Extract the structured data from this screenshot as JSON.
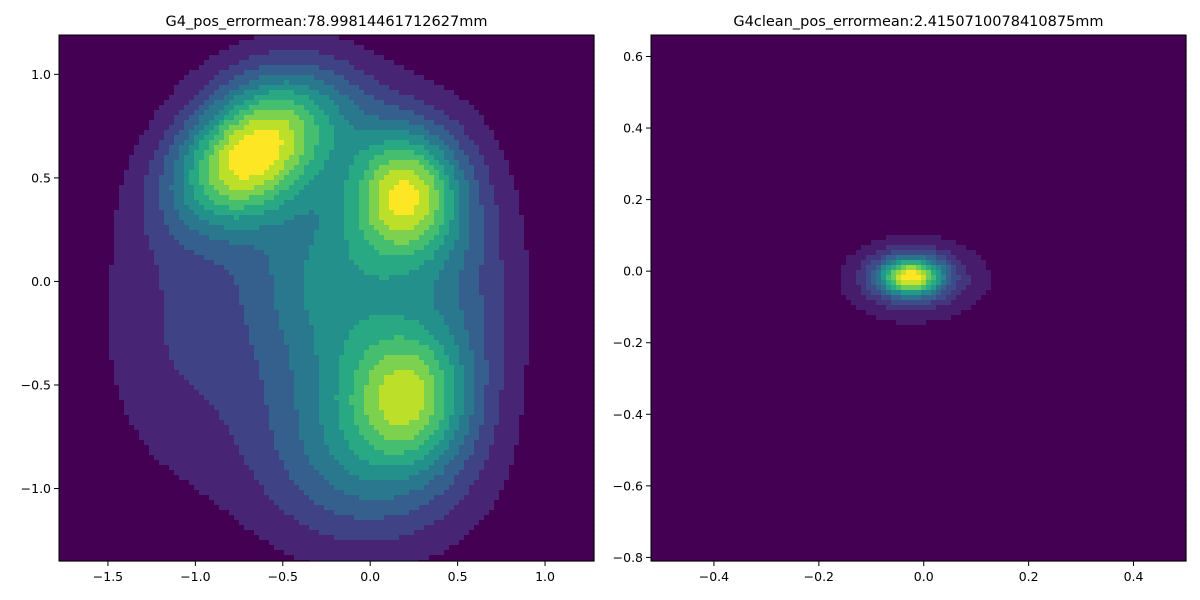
{
  "figure": {
    "background": "#ffffff"
  },
  "colormap": [
    "#440154",
    "#482878",
    "#3e4989",
    "#31688e",
    "#26828e",
    "#1f9e89",
    "#35b779",
    "#6ece58",
    "#b5de2b",
    "#fde725"
  ],
  "chart_data": [
    {
      "type": "heatmap",
      "subtype": "filled-contour-kde",
      "title": "G4_pos_errormean:78.99814461712627mm",
      "xlabel": "",
      "ylabel": "",
      "xlim": [
        -1.78,
        1.28
      ],
      "ylim": [
        -1.35,
        1.19
      ],
      "xticks": [
        -1.5,
        -1.0,
        -0.5,
        0.0,
        0.5,
        1.0
      ],
      "xtick_labels": [
        "−1.5",
        "−1.0",
        "−0.5",
        "0.0",
        "0.5",
        "1.0"
      ],
      "yticks": [
        -1.0,
        -0.5,
        0.0,
        0.5,
        1.0
      ],
      "ytick_labels": [
        "−1.0",
        "−0.5",
        "0.0",
        "0.5",
        "1.0"
      ],
      "grid": false,
      "levels": 11,
      "peaks": [
        {
          "x": -0.72,
          "y": 0.58,
          "sx": 0.3,
          "sy": 0.2,
          "weight": 1.0,
          "rotation_deg": -25
        },
        {
          "x": 0.2,
          "y": 0.43,
          "sx": 0.22,
          "sy": 0.22,
          "weight": 0.95
        },
        {
          "x": 0.22,
          "y": -0.56,
          "sx": 0.23,
          "sy": 0.23,
          "weight": 0.62
        },
        {
          "x": -0.4,
          "y": 0.82,
          "sx": 0.35,
          "sy": 0.22,
          "weight": 0.45
        },
        {
          "x": -0.25,
          "y": 0.1,
          "sx": 0.35,
          "sy": 0.32,
          "weight": 0.45
        },
        {
          "x": -0.1,
          "y": -0.55,
          "sx": 0.42,
          "sy": 0.42,
          "weight": 0.45
        },
        {
          "x": 0.5,
          "y": 0.0,
          "sx": 0.28,
          "sy": 0.5,
          "weight": 0.3
        },
        {
          "x": -1.1,
          "y": -0.2,
          "sx": 0.35,
          "sy": 0.55,
          "weight": 0.22
        },
        {
          "x": 0.0,
          "y": -0.95,
          "sx": 0.45,
          "sy": 0.28,
          "weight": 0.22
        }
      ]
    },
    {
      "type": "heatmap",
      "subtype": "filled-contour-kde",
      "title": "G4clean_pos_errormean:2.4150710078410875mm",
      "xlabel": "",
      "ylabel": "",
      "xlim": [
        -0.52,
        0.5
      ],
      "ylim": [
        -0.81,
        0.66
      ],
      "xticks": [
        -0.4,
        -0.2,
        0.0,
        0.2,
        0.4
      ],
      "xtick_labels": [
        "−0.4",
        "−0.2",
        "0.0",
        "0.2",
        "0.4"
      ],
      "yticks": [
        -0.8,
        -0.6,
        -0.4,
        -0.2,
        0.0,
        0.2,
        0.4,
        0.6
      ],
      "ytick_labels": [
        "−0.8",
        "−0.6",
        "−0.4",
        "−0.2",
        "0.0",
        "0.2",
        "0.4",
        "0.6"
      ],
      "grid": false,
      "levels": 14,
      "peaks": [
        {
          "x": -0.025,
          "y": -0.015,
          "sx": 0.04,
          "sy": 0.035,
          "weight": 1.0
        },
        {
          "x": -0.02,
          "y": -0.02,
          "sx": 0.08,
          "sy": 0.07,
          "weight": 0.3
        },
        {
          "x": 0.0,
          "y": -0.02,
          "sx": 0.12,
          "sy": 0.1,
          "weight": 0.06
        },
        {
          "x": 0.17,
          "y": -0.04,
          "sx": 0.05,
          "sy": 0.07,
          "weight": 0.01
        },
        {
          "x": -0.2,
          "y": -0.01,
          "sx": 0.05,
          "sy": 0.06,
          "weight": 0.01
        },
        {
          "x": -0.07,
          "y": -0.17,
          "sx": 0.07,
          "sy": 0.05,
          "weight": 0.015
        }
      ]
    }
  ]
}
